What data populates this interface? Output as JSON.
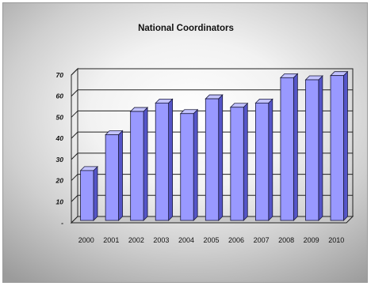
{
  "chart_data": {
    "type": "bar",
    "title": "National Coordinators",
    "categories": [
      "2000",
      "2001",
      "2002",
      "2003",
      "2004",
      "2005",
      "2006",
      "2007",
      "2008",
      "2009",
      "2010"
    ],
    "values": [
      24,
      41,
      52,
      56,
      51,
      58,
      54,
      56,
      68,
      67,
      69
    ],
    "ylim": [
      0,
      70
    ],
    "yticks": [
      "-",
      "10",
      "20",
      "30",
      "40",
      "50",
      "60",
      "70"
    ],
    "grid": true,
    "legend": "none",
    "colors": {
      "bar_front": "#9999ff",
      "bar_side": "#5555c8",
      "bar_top": "#c2c2ff",
      "bar_edge": "#1a1a3a"
    }
  }
}
